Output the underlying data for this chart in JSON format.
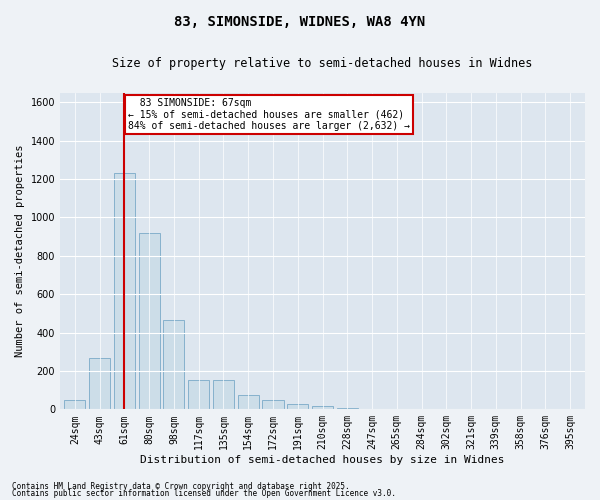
{
  "title": "83, SIMONSIDE, WIDNES, WA8 4YN",
  "subtitle": "Size of property relative to semi-detached houses in Widnes",
  "xlabel": "Distribution of semi-detached houses by size in Widnes",
  "ylabel": "Number of semi-detached properties",
  "categories": [
    "24sqm",
    "43sqm",
    "61sqm",
    "80sqm",
    "98sqm",
    "117sqm",
    "135sqm",
    "154sqm",
    "172sqm",
    "191sqm",
    "210sqm",
    "228sqm",
    "247sqm",
    "265sqm",
    "284sqm",
    "302sqm",
    "321sqm",
    "339sqm",
    "358sqm",
    "376sqm",
    "395sqm"
  ],
  "values": [
    50,
    265,
    1230,
    920,
    465,
    155,
    155,
    75,
    50,
    28,
    18,
    8,
    4,
    2,
    1,
    1,
    0,
    0,
    0,
    0,
    0
  ],
  "bar_color": "#ccdde8",
  "bar_edge_color": "#7aaac8",
  "vline_x_index": 2,
  "vline_color": "#cc0000",
  "vline_label": "83 SIMONSIDE: 67sqm",
  "annotation_smaller_pct": "15%",
  "annotation_smaller_n": "462",
  "annotation_larger_pct": "84%",
  "annotation_larger_n": "2,632",
  "ylim": [
    0,
    1650
  ],
  "yticks": [
    0,
    200,
    400,
    600,
    800,
    1000,
    1200,
    1400,
    1600
  ],
  "footnote1": "Contains HM Land Registry data © Crown copyright and database right 2025.",
  "footnote2": "Contains public sector information licensed under the Open Government Licence v3.0.",
  "bg_color": "#eef2f6",
  "plot_bg_color": "#dde6ef",
  "grid_color": "#ffffff",
  "annotation_box_color": "#cc0000",
  "title_fontsize": 10,
  "subtitle_fontsize": 8.5,
  "xlabel_fontsize": 8,
  "ylabel_fontsize": 7.5,
  "tick_fontsize": 7,
  "annot_fontsize": 7
}
